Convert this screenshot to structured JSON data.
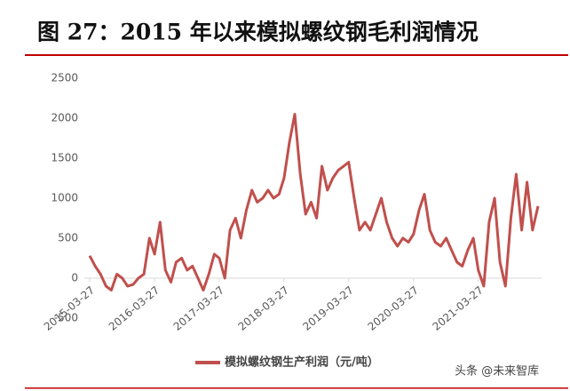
{
  "chart_data": {
    "type": "line",
    "title": "图 27：2015 年以来模拟螺纹钢毛利润情况",
    "watermark": "头条 @未来智库",
    "x": [
      "2015-03-27",
      "2015-04-27",
      "2015-05-27",
      "2015-06-27",
      "2015-07-27",
      "2015-08-27",
      "2015-09-27",
      "2015-10-27",
      "2015-11-27",
      "2015-12-27",
      "2016-01-27",
      "2016-02-27",
      "2016-03-27",
      "2016-04-27",
      "2016-05-27",
      "2016-06-27",
      "2016-07-27",
      "2016-08-27",
      "2016-09-27",
      "2016-10-27",
      "2016-11-27",
      "2016-12-27",
      "2017-01-27",
      "2017-02-27",
      "2017-03-27",
      "2017-04-27",
      "2017-05-27",
      "2017-06-27",
      "2017-07-27",
      "2017-08-27",
      "2017-09-27",
      "2017-10-27",
      "2017-11-27",
      "2017-12-27",
      "2018-01-27",
      "2018-02-27",
      "2018-03-27",
      "2018-04-27",
      "2018-05-27",
      "2018-06-27",
      "2018-07-27",
      "2018-08-27",
      "2018-09-27",
      "2018-10-27",
      "2018-11-27",
      "2018-12-27",
      "2019-01-27",
      "2019-02-27",
      "2019-03-27",
      "2019-04-27",
      "2019-05-27",
      "2019-06-27",
      "2019-07-27",
      "2019-08-27",
      "2019-09-27",
      "2019-10-27",
      "2019-11-27",
      "2019-12-27",
      "2020-01-27",
      "2020-02-27",
      "2020-03-27",
      "2020-04-27",
      "2020-05-27",
      "2020-06-27",
      "2020-07-27",
      "2020-08-27",
      "2020-09-27",
      "2020-10-27",
      "2020-11-27",
      "2020-12-27",
      "2021-01-27",
      "2021-02-27",
      "2021-03-27",
      "2021-04-27",
      "2021-05-27",
      "2021-06-27",
      "2021-07-27",
      "2021-08-27",
      "2021-09-27",
      "2021-10-27",
      "2021-11-27",
      "2021-12-27",
      "2022-01-27",
      "2022-02-27"
    ],
    "series": [
      {
        "name": "模拟螺纹钢生产利润（元/吨）",
        "color": "#c0504d",
        "values": [
          280,
          150,
          50,
          -100,
          -150,
          50,
          0,
          -100,
          -80,
          0,
          50,
          500,
          300,
          700,
          100,
          -50,
          200,
          250,
          100,
          150,
          0,
          -150,
          50,
          300,
          250,
          0,
          600,
          750,
          500,
          850,
          1100,
          950,
          1000,
          1100,
          1000,
          1050,
          1250,
          1700,
          2050,
          1300,
          800,
          950,
          750,
          1400,
          1100,
          1250,
          1350,
          1400,
          1450,
          1000,
          600,
          700,
          600,
          800,
          1000,
          700,
          500,
          400,
          500,
          450,
          550,
          850,
          1050,
          600,
          450,
          400,
          500,
          350,
          200,
          150,
          350,
          500,
          100,
          -100,
          700,
          1000,
          200,
          -100,
          750,
          1300,
          600,
          1200,
          600,
          900
        ]
      }
    ],
    "xticks": [
      "2015-03-27",
      "2016-03-27",
      "2017-03-27",
      "2018-03-27",
      "2019-03-27",
      "2020-03-27",
      "2021-03-27"
    ],
    "ylim": [
      -500,
      2500
    ],
    "yticks": [
      -500,
      0,
      500,
      1000,
      1500,
      2000,
      2500
    ],
    "grid": false,
    "legend": "bottom"
  }
}
